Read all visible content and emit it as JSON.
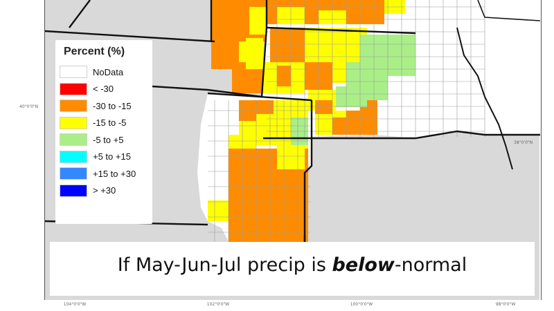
{
  "legend": {
    "title": "Percent (%)",
    "items": [
      {
        "label": "NoData",
        "color": "#ffffff"
      },
      {
        "label": "< -30",
        "color": "#ff0000"
      },
      {
        "label": "-30 to -15",
        "color": "#ff8c00"
      },
      {
        "label": "-15 to -5",
        "color": "#ffff00"
      },
      {
        "label": "-5 to +5",
        "color": "#aaee88"
      },
      {
        "label": "+5 to +15",
        "color": "#00ffff"
      },
      {
        "label": "+15 to +30",
        "color": "#3388ff"
      },
      {
        "label": "> +30",
        "color": "#0000ff"
      }
    ]
  },
  "caption": {
    "prefix": "If May-Jun-Jul precip is ",
    "emphasis": "below",
    "suffix": "-normal"
  },
  "axis": {
    "lon_labels": [
      "104°0'0\"W",
      "102°0'0\"W",
      "100°0'0\"W",
      "98°0'0\"W"
    ],
    "lat_labels": [
      "40°0'0\"N",
      "38°0'0\"N"
    ]
  },
  "colors": {
    "nodata": "#ffffff",
    "decline_strong": "#ff8c00",
    "decline_mild": "#ffff00",
    "neutral": "#aaee88",
    "outside": "#d9d9d9",
    "border": "#111111",
    "county_line": "#b5b5b5"
  }
}
